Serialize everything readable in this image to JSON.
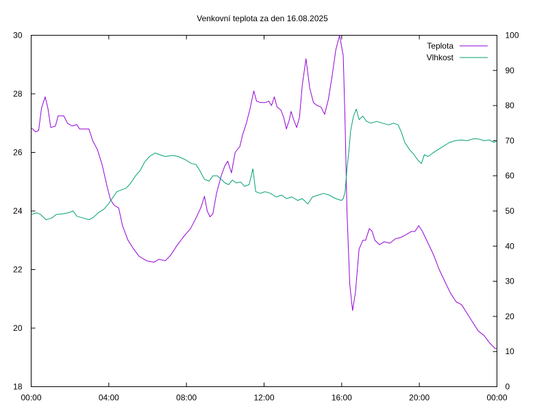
{
  "chart_data": {
    "type": "line",
    "title": "Venkovní teplota za den 16.08.2025",
    "x_tick_labels": [
      "00:00",
      "04:00",
      "08:00",
      "12:00",
      "16:00",
      "20:00",
      "00:00"
    ],
    "xlim": [
      0,
      24
    ],
    "y_left": {
      "ylim": [
        18,
        30
      ],
      "ticks": [
        18,
        20,
        22,
        24,
        26,
        28,
        30
      ]
    },
    "y_right": {
      "ylim": [
        0,
        100
      ],
      "ticks": [
        0,
        10,
        20,
        30,
        40,
        50,
        60,
        70,
        80,
        90,
        100
      ]
    },
    "legend_position": "top-right",
    "grid": false,
    "series": [
      {
        "name": "Teplota",
        "axis": "left",
        "color": "#9400d3",
        "points": [
          [
            0.0,
            26.85
          ],
          [
            0.25,
            26.7
          ],
          [
            0.4,
            26.75
          ],
          [
            0.55,
            27.5
          ],
          [
            0.75,
            27.9
          ],
          [
            0.9,
            27.5
          ],
          [
            1.05,
            26.85
          ],
          [
            1.3,
            26.9
          ],
          [
            1.45,
            27.25
          ],
          [
            1.75,
            27.25
          ],
          [
            1.95,
            27.0
          ],
          [
            2.2,
            26.9
          ],
          [
            2.45,
            26.95
          ],
          [
            2.6,
            26.8
          ],
          [
            3.1,
            26.8
          ],
          [
            3.3,
            26.4
          ],
          [
            3.55,
            26.1
          ],
          [
            3.8,
            25.6
          ],
          [
            4.05,
            24.9
          ],
          [
            4.25,
            24.4
          ],
          [
            4.45,
            24.2
          ],
          [
            4.7,
            24.1
          ],
          [
            4.9,
            23.5
          ],
          [
            5.2,
            23.0
          ],
          [
            5.5,
            22.7
          ],
          [
            5.8,
            22.45
          ],
          [
            6.2,
            22.3
          ],
          [
            6.6,
            22.25
          ],
          [
            6.85,
            22.35
          ],
          [
            7.2,
            22.3
          ],
          [
            7.5,
            22.5
          ],
          [
            7.8,
            22.8
          ],
          [
            8.15,
            23.1
          ],
          [
            8.55,
            23.4
          ],
          [
            8.8,
            23.7
          ],
          [
            9.1,
            24.1
          ],
          [
            9.3,
            24.5
          ],
          [
            9.45,
            24.0
          ],
          [
            9.6,
            23.8
          ],
          [
            9.75,
            23.9
          ],
          [
            9.95,
            24.6
          ],
          [
            10.2,
            25.2
          ],
          [
            10.4,
            25.55
          ],
          [
            10.55,
            25.7
          ],
          [
            10.65,
            25.5
          ],
          [
            10.75,
            25.3
          ],
          [
            10.95,
            26.0
          ],
          [
            11.2,
            26.2
          ],
          [
            11.35,
            26.6
          ],
          [
            11.55,
            27.0
          ],
          [
            11.75,
            27.5
          ],
          [
            11.95,
            28.1
          ],
          [
            12.1,
            27.75
          ],
          [
            12.3,
            27.7
          ],
          [
            12.55,
            27.7
          ],
          [
            12.75,
            27.75
          ],
          [
            12.9,
            27.6
          ],
          [
            13.05,
            27.9
          ],
          [
            13.2,
            27.55
          ],
          [
            13.4,
            27.45
          ],
          [
            13.55,
            27.2
          ],
          [
            13.7,
            26.8
          ],
          [
            13.85,
            27.1
          ],
          [
            13.95,
            27.4
          ],
          [
            14.1,
            27.1
          ],
          [
            14.25,
            26.85
          ],
          [
            14.4,
            27.2
          ],
          [
            14.55,
            28.3
          ],
          [
            14.75,
            29.2
          ],
          [
            14.95,
            28.2
          ],
          [
            15.15,
            27.7
          ],
          [
            15.35,
            27.6
          ],
          [
            15.55,
            27.55
          ],
          [
            15.75,
            27.3
          ],
          [
            15.95,
            27.8
          ],
          [
            16.15,
            28.6
          ],
          [
            16.35,
            29.5
          ],
          [
            16.55,
            30.0
          ],
          [
            16.75,
            29.3
          ],
          [
            16.85,
            27.0
          ],
          [
            16.95,
            24.0
          ],
          [
            17.1,
            21.5
          ],
          [
            17.25,
            20.6
          ],
          [
            17.4,
            21.2
          ],
          [
            17.6,
            22.7
          ],
          [
            17.8,
            23.0
          ],
          [
            17.95,
            23.0
          ],
          [
            18.15,
            23.4
          ],
          [
            18.3,
            23.3
          ],
          [
            18.45,
            23.0
          ],
          [
            18.7,
            22.85
          ],
          [
            18.95,
            22.95
          ],
          [
            19.25,
            22.9
          ],
          [
            19.55,
            23.05
          ],
          [
            19.85,
            23.1
          ],
          [
            20.15,
            23.2
          ],
          [
            20.4,
            23.3
          ],
          [
            20.6,
            23.3
          ],
          [
            20.8,
            23.5
          ],
          [
            21.0,
            23.3
          ],
          [
            21.3,
            22.9
          ],
          [
            21.6,
            22.5
          ],
          [
            21.9,
            22.0
          ],
          [
            22.2,
            21.6
          ],
          [
            22.5,
            21.2
          ],
          [
            22.8,
            20.9
          ],
          [
            23.1,
            20.8
          ],
          [
            23.4,
            20.5
          ],
          [
            23.7,
            20.2
          ],
          [
            24.0,
            19.9
          ],
          [
            24.3,
            19.75
          ],
          [
            24.6,
            19.5
          ],
          [
            24.9,
            19.3
          ],
          [
            25.0,
            19.3
          ]
        ]
      },
      {
        "name": "Vlhkost",
        "axis": "right",
        "color": "#009e73",
        "points": [
          [
            0.0,
            49.0
          ],
          [
            0.3,
            49.5
          ],
          [
            0.5,
            49.0
          ],
          [
            0.8,
            47.5
          ],
          [
            1.1,
            48.0
          ],
          [
            1.35,
            49.0
          ],
          [
            1.7,
            49.2
          ],
          [
            2.0,
            49.5
          ],
          [
            2.25,
            50.0
          ],
          [
            2.45,
            48.5
          ],
          [
            2.8,
            48.0
          ],
          [
            3.1,
            47.5
          ],
          [
            3.35,
            48.2
          ],
          [
            3.6,
            49.5
          ],
          [
            3.9,
            50.5
          ],
          [
            4.15,
            52.0
          ],
          [
            4.4,
            54.0
          ],
          [
            4.6,
            55.5
          ],
          [
            4.85,
            56.0
          ],
          [
            5.1,
            56.5
          ],
          [
            5.35,
            58.0
          ],
          [
            5.6,
            60.0
          ],
          [
            5.85,
            61.5
          ],
          [
            6.1,
            64.0
          ],
          [
            6.35,
            65.5
          ],
          [
            6.65,
            66.5
          ],
          [
            6.9,
            66.0
          ],
          [
            7.2,
            65.5
          ],
          [
            7.6,
            65.8
          ],
          [
            7.9,
            65.5
          ],
          [
            8.3,
            64.5
          ],
          [
            8.6,
            63.5
          ],
          [
            8.85,
            63.2
          ],
          [
            9.05,
            61.5
          ],
          [
            9.3,
            59.0
          ],
          [
            9.55,
            58.5
          ],
          [
            9.75,
            60.0
          ],
          [
            10.0,
            60.0
          ],
          [
            10.2,
            59.0
          ],
          [
            10.4,
            58.0
          ],
          [
            10.6,
            57.5
          ],
          [
            10.8,
            58.8
          ],
          [
            11.0,
            58.0
          ],
          [
            11.25,
            58.2
          ],
          [
            11.45,
            57.0
          ],
          [
            11.7,
            57.5
          ],
          [
            11.9,
            62.0
          ],
          [
            12.05,
            55.5
          ],
          [
            12.3,
            55.0
          ],
          [
            12.55,
            55.5
          ],
          [
            12.85,
            55.0
          ],
          [
            13.15,
            54.0
          ],
          [
            13.45,
            54.5
          ],
          [
            13.7,
            53.5
          ],
          [
            14.0,
            54.0
          ],
          [
            14.3,
            53.0
          ],
          [
            14.55,
            53.5
          ],
          [
            14.85,
            52.0
          ],
          [
            15.1,
            54.0
          ],
          [
            15.4,
            54.5
          ],
          [
            15.7,
            55.0
          ],
          [
            16.0,
            54.5
          ],
          [
            16.35,
            53.5
          ],
          [
            16.65,
            53.0
          ],
          [
            16.75,
            53.5
          ],
          [
            16.85,
            55.5
          ],
          [
            16.95,
            62.0
          ],
          [
            17.05,
            67.0
          ],
          [
            17.15,
            73.0
          ],
          [
            17.3,
            77.0
          ],
          [
            17.45,
            79.0
          ],
          [
            17.6,
            76.0
          ],
          [
            17.8,
            77.0
          ],
          [
            18.0,
            75.5
          ],
          [
            18.25,
            75.0
          ],
          [
            18.55,
            75.5
          ],
          [
            18.85,
            75.0
          ],
          [
            19.2,
            74.5
          ],
          [
            19.45,
            75.0
          ],
          [
            19.7,
            74.5
          ],
          [
            19.9,
            72.0
          ],
          [
            20.05,
            69.5
          ],
          [
            20.3,
            67.5
          ],
          [
            20.55,
            66.0
          ],
          [
            20.75,
            64.5
          ],
          [
            20.95,
            63.5
          ],
          [
            21.1,
            66.0
          ],
          [
            21.3,
            65.5
          ],
          [
            21.55,
            66.5
          ],
          [
            21.85,
            67.5
          ],
          [
            22.15,
            68.5
          ],
          [
            22.45,
            69.5
          ],
          [
            22.75,
            70.0
          ],
          [
            23.1,
            70.2
          ],
          [
            23.4,
            70.0
          ],
          [
            23.7,
            70.5
          ],
          [
            24.0,
            70.5
          ],
          [
            24.3,
            70.0
          ],
          [
            24.6,
            70.2
          ],
          [
            24.85,
            69.5
          ],
          [
            25.0,
            70.0
          ]
        ]
      }
    ]
  }
}
